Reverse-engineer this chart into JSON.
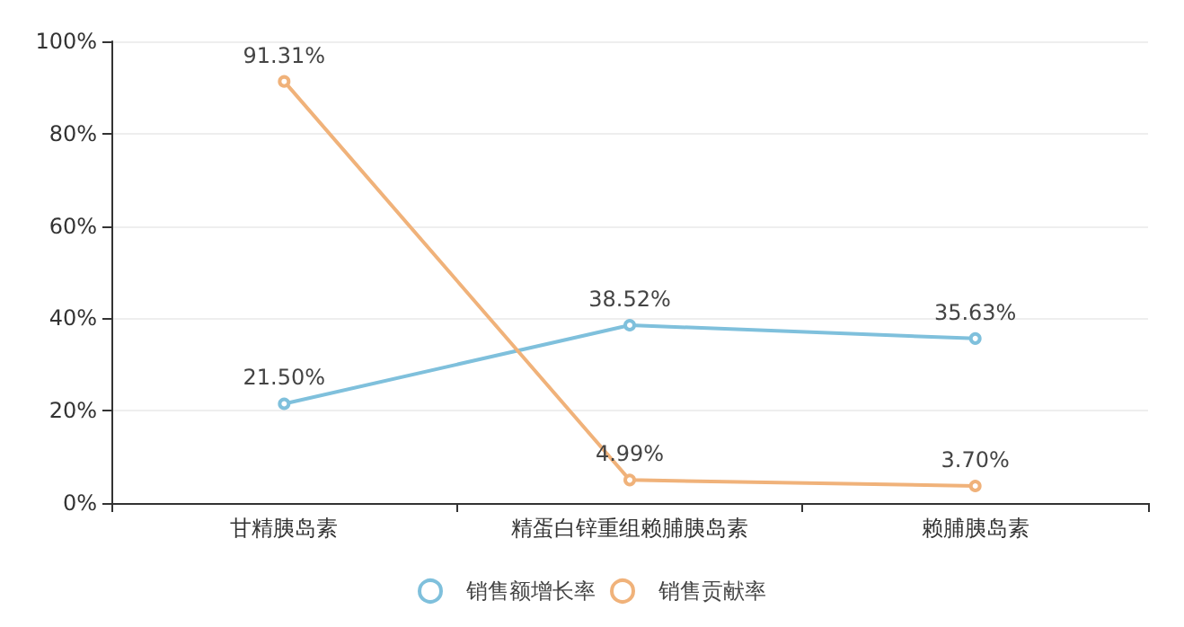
{
  "chart_data": {
    "type": "line",
    "categories": [
      "甘精胰岛素",
      "精蛋白锌重组赖脯胰岛素",
      "赖脯胰岛素"
    ],
    "series": [
      {
        "name": "销售额增长率",
        "color": "#7fc0dc",
        "values": [
          21.5,
          38.52,
          35.63
        ],
        "value_labels": [
          "21.50%",
          "38.52%",
          "35.63%"
        ]
      },
      {
        "name": "销售贡献率",
        "color": "#f0b27a",
        "values": [
          91.31,
          4.99,
          3.7
        ],
        "value_labels": [
          "91.31%",
          "4.99%",
          "3.70%"
        ]
      }
    ],
    "ylim": [
      0,
      100
    ],
    "yticks": [
      {
        "value": 0,
        "label": "0%"
      },
      {
        "value": 20,
        "label": "20%"
      },
      {
        "value": 40,
        "label": "40%"
      },
      {
        "value": 60,
        "label": "60%"
      },
      {
        "value": 80,
        "label": "80%"
      },
      {
        "value": 100,
        "label": "100%"
      }
    ],
    "grid": "y",
    "legend": "bottom",
    "marker": "circle",
    "line_style": "solid"
  }
}
